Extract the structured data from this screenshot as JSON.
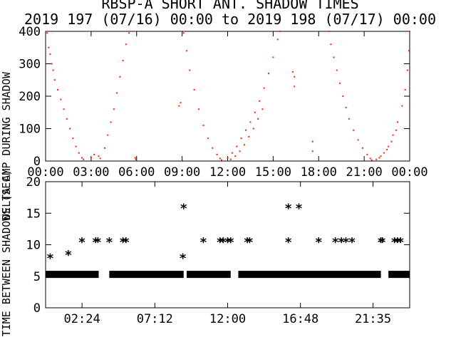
{
  "title_line1": "RBSP-A SHORT ANT. SHADOW TIMES",
  "title_line2": "2019 197 (07/16) 00:00 to 2019 198 (07/17) 00:00",
  "colors": {
    "shadow_points": "#ff2200",
    "markers": "#000000",
    "axes": "#000000",
    "background": "#ffffff"
  },
  "chart_data": [
    {
      "type": "scatter",
      "ylabel": "DELTA AMP DURING SHADOW",
      "xlim": [
        0,
        24
      ],
      "ylim": [
        0,
        400
      ],
      "x_tick_labels": [
        "00:00",
        "03:00",
        "06:00",
        "09:00",
        "12:00",
        "15:00",
        "18:00",
        "21:00",
        "00:00"
      ],
      "x_tick_hours": [
        0,
        3,
        6,
        9,
        12,
        15,
        18,
        21,
        24
      ],
      "y_tick_labels": [
        "0",
        "100",
        "200",
        "300",
        "400"
      ],
      "y_tick_values": [
        0,
        100,
        200,
        300,
        400
      ],
      "grid": false,
      "series": [
        {
          "values_description_free": true,
          "points": [
            [
              0.1,
              395
            ],
            [
              0.2,
              350
            ],
            [
              0.3,
              330
            ],
            [
              0.4,
              300
            ],
            [
              0.5,
              280
            ],
            [
              0.6,
              250
            ],
            [
              0.8,
              220
            ],
            [
              1.0,
              190
            ],
            [
              1.2,
              160
            ],
            [
              1.4,
              130
            ],
            [
              1.6,
              100
            ],
            [
              1.8,
              70
            ],
            [
              2.0,
              45
            ],
            [
              2.2,
              25
            ],
            [
              2.4,
              10
            ],
            [
              2.5,
              5
            ],
            [
              3.0,
              10
            ],
            [
              3.2,
              20
            ],
            [
              3.5,
              15
            ],
            [
              3.6,
              8
            ],
            [
              3.9,
              40
            ],
            [
              4.1,
              80
            ],
            [
              4.3,
              120
            ],
            [
              4.5,
              160
            ],
            [
              4.7,
              210
            ],
            [
              4.9,
              260
            ],
            [
              5.1,
              310
            ],
            [
              5.3,
              360
            ],
            [
              5.5,
              395
            ],
            [
              5.9,
              10
            ],
            [
              5.95,
              5
            ],
            [
              8.8,
              170
            ],
            [
              8.9,
              180
            ],
            [
              9.1,
              395
            ],
            [
              9.3,
              340
            ],
            [
              9.5,
              280
            ],
            [
              9.8,
              220
            ],
            [
              10.1,
              160
            ],
            [
              10.4,
              110
            ],
            [
              10.7,
              70
            ],
            [
              11.0,
              40
            ],
            [
              11.3,
              20
            ],
            [
              11.5,
              8
            ],
            [
              11.6,
              3
            ],
            [
              12.0,
              10
            ],
            [
              12.3,
              25
            ],
            [
              12.6,
              45
            ],
            [
              12.9,
              70
            ],
            [
              13.2,
              95
            ],
            [
              13.5,
              120
            ],
            [
              13.8,
              150
            ],
            [
              14.1,
              185
            ],
            [
              14.4,
              225
            ],
            [
              14.7,
              270
            ],
            [
              15.0,
              320
            ],
            [
              15.3,
              375
            ],
            [
              15.45,
              400
            ],
            [
              12.2,
              5
            ],
            [
              12.5,
              15
            ],
            [
              12.8,
              30
            ],
            [
              13.1,
              50
            ],
            [
              13.4,
              75
            ],
            [
              13.7,
              100
            ],
            [
              14.0,
              130
            ],
            [
              14.3,
              160
            ],
            [
              16.3,
              275
            ],
            [
              16.4,
              260
            ],
            [
              16.4,
              230
            ],
            [
              17.6,
              30
            ],
            [
              17.6,
              60
            ],
            [
              18.7,
              400
            ],
            [
              18.8,
              360
            ],
            [
              19.0,
              320
            ],
            [
              19.2,
              280
            ],
            [
              19.4,
              240
            ],
            [
              19.6,
              200
            ],
            [
              19.8,
              165
            ],
            [
              20.0,
              130
            ],
            [
              20.3,
              95
            ],
            [
              20.6,
              65
            ],
            [
              20.9,
              40
            ],
            [
              21.2,
              20
            ],
            [
              21.4,
              8
            ],
            [
              21.5,
              3
            ],
            [
              22.0,
              10
            ],
            [
              22.3,
              25
            ],
            [
              22.6,
              45
            ],
            [
              22.9,
              80
            ],
            [
              23.2,
              120
            ],
            [
              23.5,
              170
            ],
            [
              23.7,
              220
            ],
            [
              23.85,
              280
            ],
            [
              23.95,
              340
            ],
            [
              24.0,
              400
            ],
            [
              21.8,
              5
            ],
            [
              22.1,
              15
            ],
            [
              22.5,
              35
            ],
            [
              22.8,
              60
            ],
            [
              23.1,
              95
            ]
          ]
        }
      ]
    },
    {
      "type": "scatter",
      "ylabel": "TIME BETWEEN SHADOWS (SEC)",
      "xlim": [
        0,
        24
      ],
      "ylim": [
        0,
        20
      ],
      "x_tick_labels": [
        "02:24",
        "07:12",
        "12:00",
        "16:48",
        "21:35"
      ],
      "x_tick_hours": [
        2.4,
        7.2,
        12.0,
        16.8,
        21.5833
      ],
      "y_tick_labels": [
        "0",
        "5",
        "10",
        "15",
        "20"
      ],
      "y_tick_values": [
        0,
        5,
        10,
        15,
        20
      ],
      "grid": false,
      "baseline_value": 5.3,
      "baseline_segments": [
        [
          0,
          3.5
        ],
        [
          4.2,
          9.1
        ],
        [
          9.3,
          12.2
        ],
        [
          12.7,
          22.1
        ],
        [
          22.6,
          24
        ]
      ],
      "markers": [
        [
          0.3,
          8.1
        ],
        [
          1.5,
          8.6
        ],
        [
          2.4,
          10.6
        ],
        [
          3.3,
          10.6
        ],
        [
          3.45,
          10.6
        ],
        [
          4.2,
          10.6
        ],
        [
          5.1,
          10.6
        ],
        [
          5.3,
          10.6
        ],
        [
          9.1,
          16.0
        ],
        [
          9.05,
          8.1
        ],
        [
          10.4,
          10.6
        ],
        [
          11.5,
          10.6
        ],
        [
          11.7,
          10.6
        ],
        [
          12.0,
          10.6
        ],
        [
          12.2,
          10.6
        ],
        [
          13.3,
          10.6
        ],
        [
          13.45,
          10.6
        ],
        [
          16.0,
          16.0
        ],
        [
          16.7,
          16.0
        ],
        [
          16.0,
          10.6
        ],
        [
          18.0,
          10.6
        ],
        [
          19.1,
          10.6
        ],
        [
          19.5,
          10.6
        ],
        [
          19.8,
          10.6
        ],
        [
          20.2,
          10.6
        ],
        [
          22.1,
          10.6
        ],
        [
          22.2,
          10.6
        ],
        [
          23.0,
          10.6
        ],
        [
          23.2,
          10.6
        ],
        [
          23.4,
          10.6
        ]
      ]
    }
  ]
}
